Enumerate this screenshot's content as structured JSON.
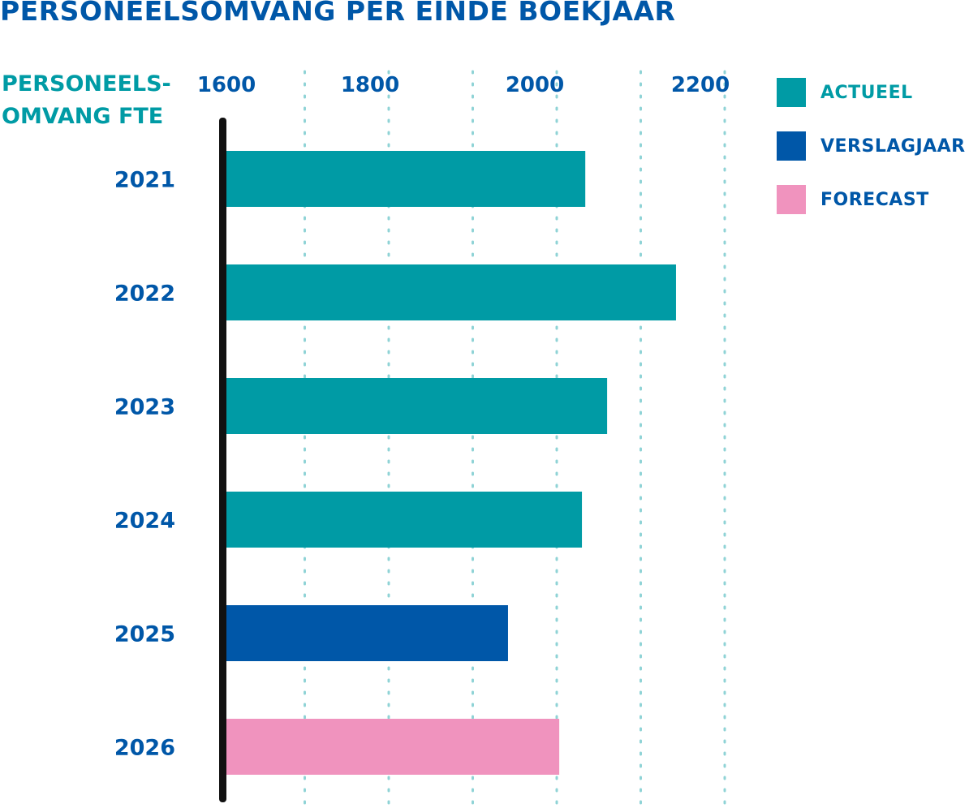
{
  "colors": {
    "actueel": "#009BA5",
    "verslagjaar": "#0057A8",
    "forecast": "#F093BE",
    "title": "#0057A8",
    "axis_title": "#009BA5",
    "gridline": "#8FD3D6"
  },
  "chart_data": {
    "type": "bar",
    "orientation": "horizontal",
    "title": "PERSONEELSOMVANG PER EINDE BOEKJAAR",
    "ylabel_lines": [
      "PERSONEELS-",
      "OMVANG FTE"
    ],
    "xlabel": "",
    "xlim": [
      1600,
      2200
    ],
    "x_ticks": [
      1600,
      1800,
      2000,
      2200
    ],
    "grid": true,
    "grid_style": "dotted vertical",
    "legend_position": "top-right",
    "categories": [
      "2021",
      "2022",
      "2023",
      "2024",
      "2025",
      "2026"
    ],
    "values": [
      2034,
      2142,
      2060,
      2030,
      1942,
      2003
    ],
    "bar_types": [
      "actueel",
      "actueel",
      "actueel",
      "actueel",
      "verslagjaar",
      "forecast"
    ],
    "legend": [
      {
        "key": "actueel",
        "label": "ACTUEEL"
      },
      {
        "key": "verslagjaar",
        "label": "VERSLAGJAAR"
      },
      {
        "key": "forecast",
        "label": "FORECAST"
      }
    ]
  }
}
